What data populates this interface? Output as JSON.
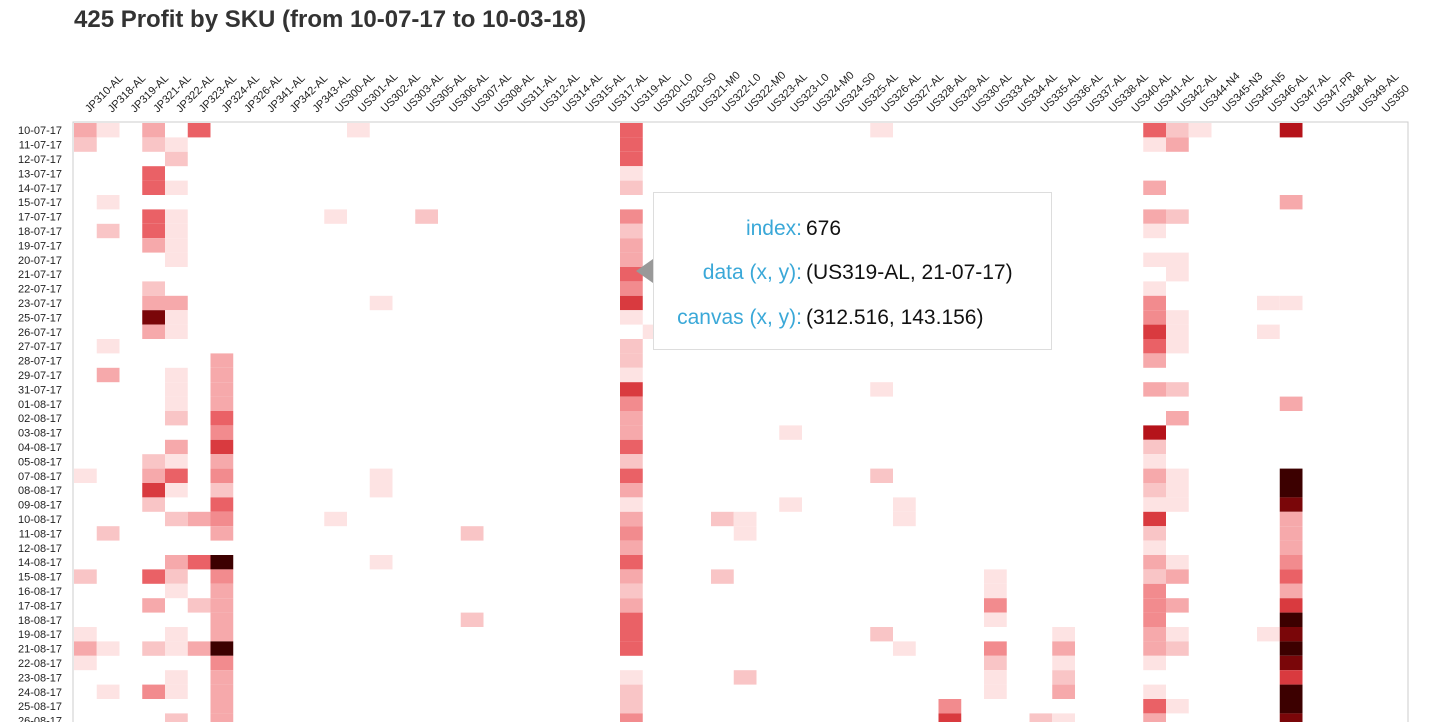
{
  "title": "425 Profit by SKU (from 10-07-17 to 10-03-18)",
  "tooltip": {
    "rows": [
      {
        "key": "index:",
        "value": "676"
      },
      {
        "key": "data (x, y):",
        "value": "(US319-AL, 21-07-17)"
      },
      {
        "key": "canvas (x, y):",
        "value": "(312.516, 143.156)"
      }
    ]
  },
  "chart_data": {
    "type": "heatmap",
    "title": "425 Profit by SKU (from 10-07-17 to 10-03-18)",
    "x_categories": [
      "JP310-AL",
      "JP318-AL",
      "JP319-AL",
      "JP321-AL",
      "JP322-AL",
      "JP323-AL",
      "JP324-AL",
      "JP326-AL",
      "JP341-AL",
      "JP342-AL",
      "JP343-AL",
      "US300-AL",
      "US301-AL",
      "US302-AL",
      "US303-AL",
      "US305-AL",
      "US306-AL",
      "US307-AL",
      "US308-AL",
      "US311-AL",
      "US312-AL",
      "US314-AL",
      "US315-AL",
      "US317-AL",
      "US319-AL",
      "US320-L0",
      "US320-S0",
      "US321-M0",
      "US322-L0",
      "US322-M0",
      "US323-AL",
      "US323-L0",
      "US324-M0",
      "US324-S0",
      "US325-AL",
      "US326-AL",
      "US327-AL",
      "US328-AL",
      "US329-AL",
      "US330-AL",
      "US333-AL",
      "US334-AL",
      "US335-AL",
      "US336-AL",
      "US337-AL",
      "US338-AL",
      "US340-AL",
      "US341-AL",
      "US342-AL",
      "US344-N4",
      "US345-N3",
      "US345-N5",
      "US346-AL",
      "US347-AL",
      "US347-PR",
      "US348-AL",
      "US349-AL",
      "US350"
    ],
    "y_categories": [
      "10-07-17",
      "11-07-17",
      "12-07-17",
      "13-07-17",
      "14-07-17",
      "15-07-17",
      "17-07-17",
      "18-07-17",
      "19-07-17",
      "20-07-17",
      "21-07-17",
      "22-07-17",
      "23-07-17",
      "25-07-17",
      "26-07-17",
      "27-07-17",
      "28-07-17",
      "29-07-17",
      "31-07-17",
      "01-08-17",
      "02-08-17",
      "03-08-17",
      "04-08-17",
      "05-08-17",
      "07-08-17",
      "08-08-17",
      "09-08-17",
      "10-08-17",
      "11-08-17",
      "12-08-17",
      "14-08-17",
      "15-08-17",
      "16-08-17",
      "17-08-17",
      "18-08-17",
      "19-08-17",
      "21-08-17",
      "22-08-17",
      "23-08-17",
      "24-08-17",
      "25-08-17",
      "26-08-17"
    ],
    "intensity_scale": "0 = none, 1 = faint pink ... 9 = darkest red",
    "cells": [
      [
        "10-07-17",
        "JP310-AL",
        3
      ],
      [
        "10-07-17",
        "JP318-AL",
        1
      ],
      [
        "10-07-17",
        "JP321-AL",
        3
      ],
      [
        "10-07-17",
        "JP323-AL",
        5
      ],
      [
        "10-07-17",
        "US301-AL",
        1
      ],
      [
        "10-07-17",
        "US319-AL",
        5
      ],
      [
        "10-07-17",
        "US326-AL",
        1
      ],
      [
        "10-07-17",
        "US341-AL",
        5
      ],
      [
        "10-07-17",
        "US342-AL",
        2
      ],
      [
        "10-07-17",
        "US344-N4",
        1
      ],
      [
        "10-07-17",
        "US347-AL",
        7
      ],
      [
        "11-07-17",
        "JP310-AL",
        2
      ],
      [
        "11-07-17",
        "JP321-AL",
        2
      ],
      [
        "11-07-17",
        "JP322-AL",
        1
      ],
      [
        "11-07-17",
        "US319-AL",
        5
      ],
      [
        "11-07-17",
        "US341-AL",
        1
      ],
      [
        "11-07-17",
        "US342-AL",
        3
      ],
      [
        "12-07-17",
        "JP322-AL",
        2
      ],
      [
        "12-07-17",
        "US319-AL",
        5
      ],
      [
        "13-07-17",
        "JP321-AL",
        5
      ],
      [
        "13-07-17",
        "US319-AL",
        1
      ],
      [
        "14-07-17",
        "JP321-AL",
        5
      ],
      [
        "14-07-17",
        "JP322-AL",
        1
      ],
      [
        "14-07-17",
        "US319-AL",
        2
      ],
      [
        "14-07-17",
        "US341-AL",
        3
      ],
      [
        "15-07-17",
        "JP318-AL",
        1
      ],
      [
        "15-07-17",
        "US347-AL",
        3
      ],
      [
        "17-07-17",
        "JP321-AL",
        5
      ],
      [
        "17-07-17",
        "JP322-AL",
        1
      ],
      [
        "17-07-17",
        "US300-AL",
        1
      ],
      [
        "17-07-17",
        "US305-AL",
        2
      ],
      [
        "17-07-17",
        "US319-AL",
        4
      ],
      [
        "17-07-17",
        "US341-AL",
        3
      ],
      [
        "17-07-17",
        "US342-AL",
        2
      ],
      [
        "18-07-17",
        "JP318-AL",
        2
      ],
      [
        "18-07-17",
        "JP321-AL",
        5
      ],
      [
        "18-07-17",
        "JP322-AL",
        1
      ],
      [
        "18-07-17",
        "US319-AL",
        2
      ],
      [
        "18-07-17",
        "US341-AL",
        1
      ],
      [
        "19-07-17",
        "JP321-AL",
        3
      ],
      [
        "19-07-17",
        "JP322-AL",
        1
      ],
      [
        "19-07-17",
        "US319-AL",
        3
      ],
      [
        "20-07-17",
        "JP322-AL",
        1
      ],
      [
        "20-07-17",
        "US319-AL",
        3
      ],
      [
        "20-07-17",
        "US341-AL",
        1
      ],
      [
        "20-07-17",
        "US342-AL",
        1
      ],
      [
        "21-07-17",
        "US319-AL",
        5
      ],
      [
        "21-07-17",
        "US342-AL",
        1
      ],
      [
        "22-07-17",
        "JP321-AL",
        2
      ],
      [
        "22-07-17",
        "US319-AL",
        4
      ],
      [
        "22-07-17",
        "US341-AL",
        1
      ],
      [
        "23-07-17",
        "JP321-AL",
        3
      ],
      [
        "23-07-17",
        "JP322-AL",
        3
      ],
      [
        "23-07-17",
        "US302-AL",
        1
      ],
      [
        "23-07-17",
        "US319-AL",
        6
      ],
      [
        "23-07-17",
        "US341-AL",
        4
      ],
      [
        "23-07-17",
        "US346-AL",
        1
      ],
      [
        "23-07-17",
        "US347-AL",
        1
      ],
      [
        "25-07-17",
        "JP321-AL",
        8
      ],
      [
        "25-07-17",
        "JP322-AL",
        1
      ],
      [
        "25-07-17",
        "US319-AL",
        1
      ],
      [
        "25-07-17",
        "US341-AL",
        4
      ],
      [
        "25-07-17",
        "US342-AL",
        1
      ],
      [
        "26-07-17",
        "JP321-AL",
        3
      ],
      [
        "26-07-17",
        "JP322-AL",
        1
      ],
      [
        "26-07-17",
        "US320-L0",
        1
      ],
      [
        "26-07-17",
        "US341-AL",
        6
      ],
      [
        "26-07-17",
        "US342-AL",
        1
      ],
      [
        "26-07-17",
        "US346-AL",
        1
      ],
      [
        "27-07-17",
        "JP318-AL",
        1
      ],
      [
        "27-07-17",
        "US319-AL",
        2
      ],
      [
        "27-07-17",
        "US341-AL",
        5
      ],
      [
        "27-07-17",
        "US342-AL",
        1
      ],
      [
        "28-07-17",
        "JP324-AL",
        3
      ],
      [
        "28-07-17",
        "US319-AL",
        2
      ],
      [
        "28-07-17",
        "US341-AL",
        3
      ],
      [
        "29-07-17",
        "JP318-AL",
        3
      ],
      [
        "29-07-17",
        "JP322-AL",
        1
      ],
      [
        "29-07-17",
        "JP324-AL",
        3
      ],
      [
        "29-07-17",
        "US319-AL",
        1
      ],
      [
        "31-07-17",
        "JP322-AL",
        1
      ],
      [
        "31-07-17",
        "JP324-AL",
        3
      ],
      [
        "31-07-17",
        "US319-AL",
        6
      ],
      [
        "31-07-17",
        "US326-AL",
        1
      ],
      [
        "31-07-17",
        "US341-AL",
        3
      ],
      [
        "31-07-17",
        "US342-AL",
        2
      ],
      [
        "01-08-17",
        "JP322-AL",
        1
      ],
      [
        "01-08-17",
        "JP324-AL",
        3
      ],
      [
        "01-08-17",
        "US319-AL",
        4
      ],
      [
        "01-08-17",
        "US347-AL",
        3
      ],
      [
        "02-08-17",
        "JP322-AL",
        2
      ],
      [
        "02-08-17",
        "JP324-AL",
        5
      ],
      [
        "02-08-17",
        "US319-AL",
        3
      ],
      [
        "02-08-17",
        "US342-AL",
        3
      ],
      [
        "03-08-17",
        "JP324-AL",
        4
      ],
      [
        "03-08-17",
        "US319-AL",
        3
      ],
      [
        "03-08-17",
        "US323-L0",
        1
      ],
      [
        "03-08-17",
        "US341-AL",
        7
      ],
      [
        "04-08-17",
        "JP322-AL",
        3
      ],
      [
        "04-08-17",
        "JP324-AL",
        6
      ],
      [
        "04-08-17",
        "US319-AL",
        5
      ],
      [
        "04-08-17",
        "US341-AL",
        2
      ],
      [
        "05-08-17",
        "JP321-AL",
        2
      ],
      [
        "05-08-17",
        "JP322-AL",
        1
      ],
      [
        "05-08-17",
        "JP324-AL",
        3
      ],
      [
        "05-08-17",
        "US319-AL",
        2
      ],
      [
        "05-08-17",
        "US341-AL",
        1
      ],
      [
        "07-08-17",
        "JP310-AL",
        1
      ],
      [
        "07-08-17",
        "JP321-AL",
        3
      ],
      [
        "07-08-17",
        "JP322-AL",
        5
      ],
      [
        "07-08-17",
        "JP324-AL",
        4
      ],
      [
        "07-08-17",
        "US302-AL",
        1
      ],
      [
        "07-08-17",
        "US319-AL",
        5
      ],
      [
        "07-08-17",
        "US326-AL",
        2
      ],
      [
        "07-08-17",
        "US341-AL",
        3
      ],
      [
        "07-08-17",
        "US342-AL",
        1
      ],
      [
        "07-08-17",
        "US347-AL",
        9
      ],
      [
        "08-08-17",
        "JP321-AL",
        6
      ],
      [
        "08-08-17",
        "JP322-AL",
        1
      ],
      [
        "08-08-17",
        "JP324-AL",
        2
      ],
      [
        "08-08-17",
        "US302-AL",
        1
      ],
      [
        "08-08-17",
        "US319-AL",
        3
      ],
      [
        "08-08-17",
        "US341-AL",
        2
      ],
      [
        "08-08-17",
        "US342-AL",
        1
      ],
      [
        "08-08-17",
        "US347-AL",
        9
      ],
      [
        "09-08-17",
        "JP321-AL",
        2
      ],
      [
        "09-08-17",
        "JP324-AL",
        5
      ],
      [
        "09-08-17",
        "US319-AL",
        1
      ],
      [
        "09-08-17",
        "US323-L0",
        1
      ],
      [
        "09-08-17",
        "US327-AL",
        1
      ],
      [
        "09-08-17",
        "US341-AL",
        1
      ],
      [
        "09-08-17",
        "US342-AL",
        1
      ],
      [
        "09-08-17",
        "US347-AL",
        8
      ],
      [
        "10-08-17",
        "JP322-AL",
        2
      ],
      [
        "10-08-17",
        "JP323-AL",
        3
      ],
      [
        "10-08-17",
        "JP324-AL",
        4
      ],
      [
        "10-08-17",
        "US300-AL",
        1
      ],
      [
        "10-08-17",
        "US319-AL",
        3
      ],
      [
        "10-08-17",
        "US322-L0",
        2
      ],
      [
        "10-08-17",
        "US322-M0",
        1
      ],
      [
        "10-08-17",
        "US327-AL",
        1
      ],
      [
        "10-08-17",
        "US341-AL",
        6
      ],
      [
        "10-08-17",
        "US347-AL",
        3
      ],
      [
        "11-08-17",
        "JP318-AL",
        2
      ],
      [
        "11-08-17",
        "JP324-AL",
        3
      ],
      [
        "11-08-17",
        "US307-AL",
        2
      ],
      [
        "11-08-17",
        "US319-AL",
        4
      ],
      [
        "11-08-17",
        "US322-M0",
        1
      ],
      [
        "11-08-17",
        "US341-AL",
        2
      ],
      [
        "11-08-17",
        "US347-AL",
        3
      ],
      [
        "12-08-17",
        "US319-AL",
        3
      ],
      [
        "12-08-17",
        "US341-AL",
        1
      ],
      [
        "12-08-17",
        "US347-AL",
        3
      ],
      [
        "14-08-17",
        "JP322-AL",
        3
      ],
      [
        "14-08-17",
        "JP323-AL",
        5
      ],
      [
        "14-08-17",
        "JP324-AL",
        9
      ],
      [
        "14-08-17",
        "US302-AL",
        1
      ],
      [
        "14-08-17",
        "US319-AL",
        5
      ],
      [
        "14-08-17",
        "US341-AL",
        3
      ],
      [
        "14-08-17",
        "US342-AL",
        1
      ],
      [
        "14-08-17",
        "US347-AL",
        4
      ],
      [
        "15-08-17",
        "JP310-AL",
        2
      ],
      [
        "15-08-17",
        "JP321-AL",
        5
      ],
      [
        "15-08-17",
        "JP322-AL",
        2
      ],
      [
        "15-08-17",
        "JP324-AL",
        4
      ],
      [
        "15-08-17",
        "US319-AL",
        3
      ],
      [
        "15-08-17",
        "US322-L0",
        2
      ],
      [
        "15-08-17",
        "US333-AL",
        1
      ],
      [
        "15-08-17",
        "US341-AL",
        2
      ],
      [
        "15-08-17",
        "US342-AL",
        3
      ],
      [
        "15-08-17",
        "US347-AL",
        5
      ],
      [
        "16-08-17",
        "JP322-AL",
        1
      ],
      [
        "16-08-17",
        "JP324-AL",
        3
      ],
      [
        "16-08-17",
        "US319-AL",
        2
      ],
      [
        "16-08-17",
        "US333-AL",
        1
      ],
      [
        "16-08-17",
        "US341-AL",
        4
      ],
      [
        "16-08-17",
        "US347-AL",
        3
      ],
      [
        "17-08-17",
        "JP321-AL",
        3
      ],
      [
        "17-08-17",
        "JP323-AL",
        2
      ],
      [
        "17-08-17",
        "JP324-AL",
        3
      ],
      [
        "17-08-17",
        "US319-AL",
        3
      ],
      [
        "17-08-17",
        "US333-AL",
        4
      ],
      [
        "17-08-17",
        "US341-AL",
        4
      ],
      [
        "17-08-17",
        "US342-AL",
        3
      ],
      [
        "17-08-17",
        "US347-AL",
        6
      ],
      [
        "18-08-17",
        "JP324-AL",
        3
      ],
      [
        "18-08-17",
        "US307-AL",
        2
      ],
      [
        "18-08-17",
        "US319-AL",
        5
      ],
      [
        "18-08-17",
        "US333-AL",
        1
      ],
      [
        "18-08-17",
        "US341-AL",
        4
      ],
      [
        "18-08-17",
        "US347-AL",
        9
      ],
      [
        "19-08-17",
        "JP310-AL",
        1
      ],
      [
        "19-08-17",
        "JP322-AL",
        1
      ],
      [
        "19-08-17",
        "JP324-AL",
        3
      ],
      [
        "19-08-17",
        "US319-AL",
        5
      ],
      [
        "19-08-17",
        "US326-AL",
        2
      ],
      [
        "19-08-17",
        "US336-AL",
        1
      ],
      [
        "19-08-17",
        "US341-AL",
        3
      ],
      [
        "19-08-17",
        "US342-AL",
        1
      ],
      [
        "19-08-17",
        "US346-AL",
        1
      ],
      [
        "19-08-17",
        "US347-AL",
        8
      ],
      [
        "21-08-17",
        "JP310-AL",
        3
      ],
      [
        "21-08-17",
        "JP318-AL",
        1
      ],
      [
        "21-08-17",
        "JP321-AL",
        2
      ],
      [
        "21-08-17",
        "JP322-AL",
        1
      ],
      [
        "21-08-17",
        "JP323-AL",
        3
      ],
      [
        "21-08-17",
        "JP324-AL",
        9
      ],
      [
        "21-08-17",
        "US319-AL",
        5
      ],
      [
        "21-08-17",
        "US327-AL",
        1
      ],
      [
        "21-08-17",
        "US333-AL",
        4
      ],
      [
        "21-08-17",
        "US336-AL",
        3
      ],
      [
        "21-08-17",
        "US341-AL",
        3
      ],
      [
        "21-08-17",
        "US342-AL",
        2
      ],
      [
        "21-08-17",
        "US347-AL",
        9
      ],
      [
        "22-08-17",
        "JP310-AL",
        1
      ],
      [
        "22-08-17",
        "JP324-AL",
        4
      ],
      [
        "22-08-17",
        "US333-AL",
        2
      ],
      [
        "22-08-17",
        "US336-AL",
        1
      ],
      [
        "22-08-17",
        "US341-AL",
        1
      ],
      [
        "22-08-17",
        "US347-AL",
        8
      ],
      [
        "23-08-17",
        "JP322-AL",
        1
      ],
      [
        "23-08-17",
        "JP324-AL",
        3
      ],
      [
        "23-08-17",
        "US319-AL",
        1
      ],
      [
        "23-08-17",
        "US322-M0",
        2
      ],
      [
        "23-08-17",
        "US333-AL",
        1
      ],
      [
        "23-08-17",
        "US336-AL",
        2
      ],
      [
        "23-08-17",
        "US347-AL",
        6
      ],
      [
        "24-08-17",
        "JP318-AL",
        1
      ],
      [
        "24-08-17",
        "JP321-AL",
        4
      ],
      [
        "24-08-17",
        "JP322-AL",
        1
      ],
      [
        "24-08-17",
        "JP324-AL",
        3
      ],
      [
        "24-08-17",
        "US319-AL",
        2
      ],
      [
        "24-08-17",
        "US333-AL",
        1
      ],
      [
        "24-08-17",
        "US336-AL",
        3
      ],
      [
        "24-08-17",
        "US341-AL",
        1
      ],
      [
        "24-08-17",
        "US347-AL",
        9
      ],
      [
        "25-08-17",
        "JP324-AL",
        3
      ],
      [
        "25-08-17",
        "US319-AL",
        2
      ],
      [
        "25-08-17",
        "US329-AL",
        4
      ],
      [
        "25-08-17",
        "US341-AL",
        5
      ],
      [
        "25-08-17",
        "US342-AL",
        1
      ],
      [
        "25-08-17",
        "US347-AL",
        9
      ],
      [
        "26-08-17",
        "JP322-AL",
        2
      ],
      [
        "26-08-17",
        "JP324-AL",
        3
      ],
      [
        "26-08-17",
        "US319-AL",
        4
      ],
      [
        "26-08-17",
        "US329-AL",
        6
      ],
      [
        "26-08-17",
        "US335-AL",
        2
      ],
      [
        "26-08-17",
        "US336-AL",
        1
      ],
      [
        "26-08-17",
        "US341-AL",
        3
      ],
      [
        "26-08-17",
        "US347-AL",
        8
      ]
    ],
    "colors": [
      "#ffffff",
      "#fde3e3",
      "#f9c5c6",
      "#f6a9ab",
      "#f28b8e",
      "#ea6166",
      "#d93a3f",
      "#b5131a",
      "#7a0609",
      "#3c0000"
    ],
    "grid": false
  }
}
